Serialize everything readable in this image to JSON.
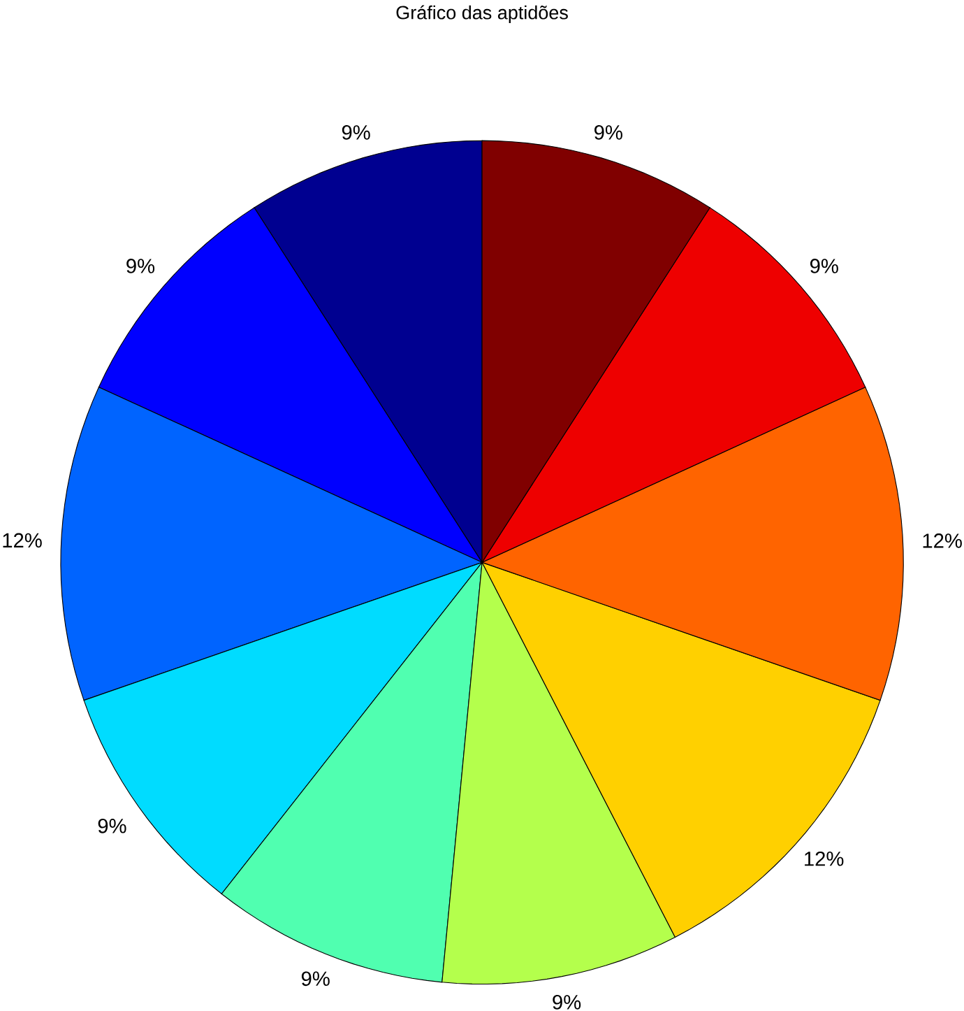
{
  "chart_data": {
    "type": "pie",
    "title": "Gráfico das aptidões",
    "categories": [
      null,
      null,
      null,
      null,
      null,
      null,
      null,
      null,
      null,
      null
    ],
    "values": [
      9,
      9,
      12,
      9,
      9,
      9,
      12,
      12,
      9,
      9
    ],
    "value_labels": [
      "9%",
      "9%",
      "12%",
      "9%",
      "9%",
      "9%",
      "12%",
      "12%",
      "9%",
      "9%"
    ],
    "colors": [
      "#000090",
      "#0000ff",
      "#0064ff",
      "#00dcff",
      "#50ffb0",
      "#b4ff4c",
      "#ffd000",
      "#ff6400",
      "#ee0000",
      "#800000"
    ]
  }
}
